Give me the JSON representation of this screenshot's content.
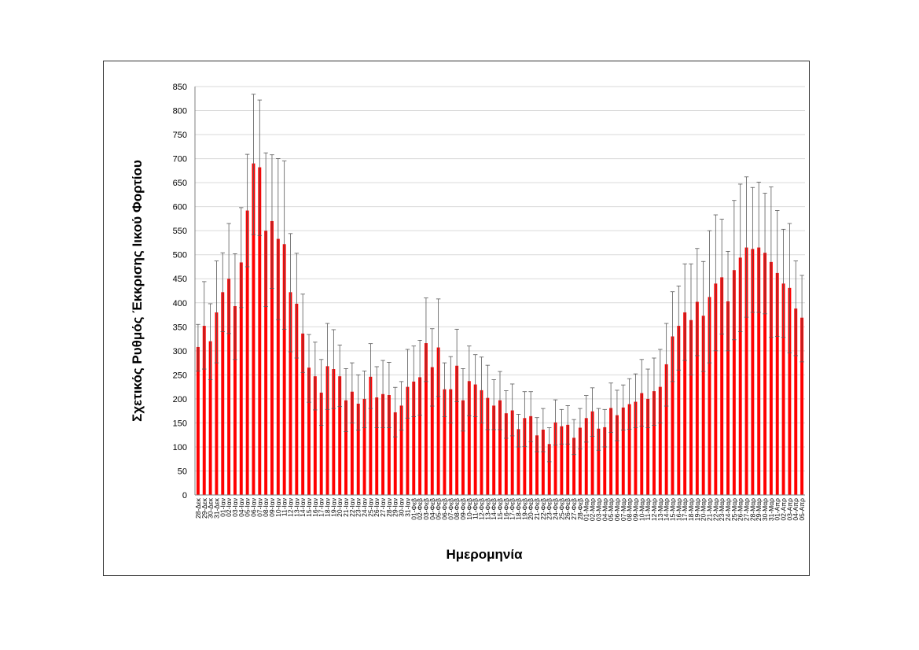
{
  "chart_data": {
    "type": "bar",
    "title": "",
    "xlabel": "Ημερομηνία",
    "ylabel": "Σχετικός Ρυθμός Έκκρισης Ιικού Φορτίου",
    "ylim": [
      0,
      850
    ],
    "yticks": [
      0,
      50,
      100,
      150,
      200,
      250,
      300,
      350,
      400,
      450,
      500,
      550,
      600,
      650,
      700,
      750,
      800,
      850
    ],
    "grid": "horizontal",
    "bar_color": "#ff0000",
    "categories": [
      "28-Δεκ",
      "29-Δεκ",
      "30-Δεκ",
      "31-Δεκ",
      "01-Ιαν",
      "02-Ιαν",
      "03-Ιαν",
      "04-Ιαν",
      "05-Ιαν",
      "06-Ιαν",
      "07-Ιαν",
      "08-Ιαν",
      "09-Ιαν",
      "10-Ιαν",
      "11-Ιαν",
      "12-Ιαν",
      "13-Ιαν",
      "14-Ιαν",
      "15-Ιαν",
      "16-Ιαν",
      "17-Ιαν",
      "18-Ιαν",
      "19-Ιαν",
      "20-Ιαν",
      "21-Ιαν",
      "22-Ιαν",
      "23-Ιαν",
      "24-Ιαν",
      "25-Ιαν",
      "26-Ιαν",
      "27-Ιαν",
      "28-Ιαν",
      "29-Ιαν",
      "30-Ιαν",
      "31-Ιαν",
      "01-Φεβ",
      "02-Φεβ",
      "03-Φεβ",
      "04-Φεβ",
      "05-Φεβ",
      "06-Φεβ",
      "07-Φεβ",
      "08-Φεβ",
      "09-Φεβ",
      "10-Φεβ",
      "11-Φεβ",
      "12-Φεβ",
      "13-Φεβ",
      "14-Φεβ",
      "15-Φεβ",
      "16-Φεβ",
      "17-Φεβ",
      "18-Φεβ",
      "19-Φεβ",
      "20-Φεβ",
      "21-Φεβ",
      "22-Φεβ",
      "23-Φεβ",
      "24-Φεβ",
      "25-Φεβ",
      "26-Φεβ",
      "27-Φεβ",
      "28-Φεβ",
      "01-Μαρ",
      "02-Μαρ",
      "03-Μαρ",
      "04-Μαρ",
      "05-Μαρ",
      "06-Μαρ",
      "07-Μαρ",
      "08-Μαρ",
      "09-Μαρ",
      "10-Μαρ",
      "11-Μαρ",
      "12-Μαρ",
      "13-Μαρ",
      "14-Μαρ",
      "15-Μαρ",
      "16-Μαρ",
      "17-Μαρ",
      "18-Μαρ",
      "19-Μαρ",
      "20-Μαρ",
      "21-Μαρ",
      "22-Μαρ",
      "23-Μαρ",
      "24-Μαρ",
      "25-Μαρ",
      "26-Μαρ",
      "27-Μαρ",
      "28-Μαρ",
      "29-Μαρ",
      "30-Μαρ",
      "31-Μαρ",
      "01-Απρ",
      "02-Απρ",
      "03-Απρ",
      "04-Απρ",
      "05-Απρ"
    ],
    "values": [
      308,
      352,
      320,
      380,
      422,
      450,
      393,
      484,
      592,
      690,
      682,
      550,
      570,
      533,
      522,
      422,
      398,
      336,
      265,
      247,
      213,
      268,
      262,
      247,
      197,
      215,
      190,
      200,
      246,
      203,
      210,
      208,
      172,
      186,
      225,
      236,
      245,
      316,
      266,
      307,
      220,
      220,
      269,
      197,
      237,
      230,
      218,
      202,
      186,
      197,
      170,
      176,
      137,
      160,
      164,
      124,
      136,
      106,
      151,
      143,
      146,
      119,
      140,
      160,
      174,
      138,
      141,
      181,
      166,
      182,
      189,
      194,
      212,
      200,
      216,
      225,
      272,
      330,
      352,
      380,
      364,
      402,
      373,
      412,
      440,
      453,
      403,
      468,
      494,
      515,
      512,
      515,
      504,
      485,
      462,
      440,
      431,
      388,
      369
    ],
    "error_bars": [
      [
        258,
        355
      ],
      [
        262,
        444
      ],
      [
        240,
        398
      ],
      [
        275,
        487
      ],
      [
        340,
        504
      ],
      [
        336,
        565
      ],
      [
        282,
        502
      ],
      [
        390,
        598
      ],
      [
        475,
        709
      ],
      [
        542,
        834
      ],
      [
        540,
        822
      ],
      [
        392,
        712
      ],
      [
        430,
        708
      ],
      [
        365,
        700
      ],
      [
        345,
        695
      ],
      [
        298,
        544
      ],
      [
        285,
        503
      ],
      [
        255,
        418
      ],
      [
        193,
        334
      ],
      [
        177,
        318
      ],
      [
        145,
        282
      ],
      [
        178,
        357
      ],
      [
        180,
        344
      ],
      [
        184,
        312
      ],
      [
        132,
        263
      ],
      [
        150,
        275
      ],
      [
        135,
        250
      ],
      [
        140,
        258
      ],
      [
        180,
        315
      ],
      [
        140,
        267
      ],
      [
        140,
        280
      ],
      [
        140,
        276
      ],
      [
        121,
        224
      ],
      [
        135,
        236
      ],
      [
        160,
        303
      ],
      [
        163,
        310
      ],
      [
        166,
        322
      ],
      [
        236,
        410
      ],
      [
        185,
        346
      ],
      [
        205,
        408
      ],
      [
        163,
        275
      ],
      [
        150,
        288
      ],
      [
        194,
        345
      ],
      [
        133,
        263
      ],
      [
        165,
        310
      ],
      [
        163,
        292
      ],
      [
        150,
        287
      ],
      [
        136,
        270
      ],
      [
        136,
        240
      ],
      [
        136,
        257
      ],
      [
        118,
        217
      ],
      [
        123,
        231
      ],
      [
        100,
        168
      ],
      [
        101,
        215
      ],
      [
        111,
        215
      ],
      [
        90,
        161
      ],
      [
        90,
        180
      ],
      [
        69,
        140
      ],
      [
        104,
        198
      ],
      [
        106,
        178
      ],
      [
        106,
        186
      ],
      [
        84,
        157
      ],
      [
        96,
        180
      ],
      [
        110,
        207
      ],
      [
        122,
        223
      ],
      [
        93,
        180
      ],
      [
        100,
        178
      ],
      [
        130,
        233
      ],
      [
        113,
        218
      ],
      [
        135,
        229
      ],
      [
        137,
        242
      ],
      [
        140,
        252
      ],
      [
        143,
        282
      ],
      [
        140,
        262
      ],
      [
        145,
        285
      ],
      [
        150,
        303
      ],
      [
        185,
        357
      ],
      [
        236,
        423
      ],
      [
        260,
        435
      ],
      [
        280,
        481
      ],
      [
        250,
        481
      ],
      [
        290,
        513
      ],
      [
        257,
        486
      ],
      [
        275,
        550
      ],
      [
        300,
        583
      ],
      [
        335,
        574
      ],
      [
        300,
        507
      ],
      [
        323,
        613
      ],
      [
        340,
        647
      ],
      [
        370,
        662
      ],
      [
        380,
        640
      ],
      [
        380,
        651
      ],
      [
        377,
        628
      ],
      [
        328,
        641
      ],
      [
        330,
        592
      ],
      [
        328,
        553
      ],
      [
        296,
        565
      ],
      [
        290,
        487
      ],
      [
        277,
        457
      ]
    ]
  }
}
